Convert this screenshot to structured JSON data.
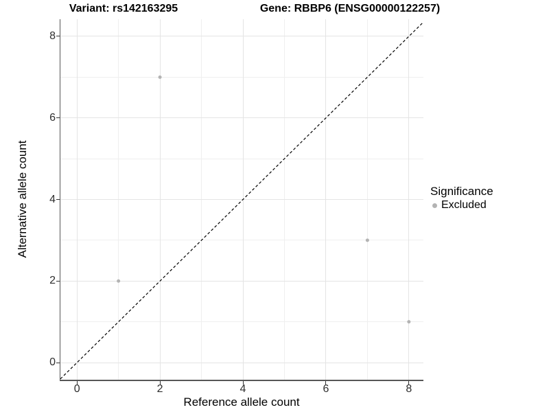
{
  "chart_data": {
    "type": "scatter",
    "title_left": "Variant: rs142163295",
    "title_right": "Gene: RBBP6 (ENSG00000122257)",
    "xlabel": "Reference allele count",
    "ylabel": "Alternative allele count",
    "xlim": [
      -0.4,
      8.35
    ],
    "ylim": [
      -0.42,
      8.42
    ],
    "x_ticks": [
      0,
      2,
      4,
      6,
      8
    ],
    "y_ticks": [
      0,
      2,
      4,
      6,
      8
    ],
    "x_minor": [
      1,
      3,
      5,
      7
    ],
    "y_minor": [
      1,
      3,
      5,
      7
    ],
    "grid": true,
    "identity_line": {
      "type": "dashed",
      "color": "#000000",
      "slope": 1,
      "intercept": 0
    },
    "series": [
      {
        "name": "Excluded",
        "color": "#b3b3b3",
        "point_radius": 2.5,
        "points": [
          {
            "x": 1,
            "y": 2
          },
          {
            "x": 2,
            "y": 7
          },
          {
            "x": 7,
            "y": 3
          },
          {
            "x": 8,
            "y": 1
          }
        ]
      }
    ],
    "legend": {
      "title": "Significance",
      "position": "right",
      "items": [
        {
          "label": "Excluded",
          "color": "#b3b3b3"
        }
      ]
    }
  },
  "colors": {
    "background": "#ffffff",
    "grid_major": "#e4e4e4",
    "grid_minor": "#efefef",
    "axis_line": "#565656",
    "tick": "#333333",
    "point": "#b3b3b3",
    "identity_line": "#000000"
  }
}
